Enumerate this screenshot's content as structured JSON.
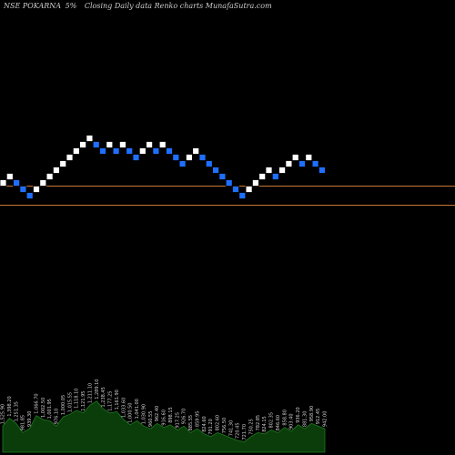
{
  "header": {
    "symbol": "NSE POKARNA",
    "box_size": "5%",
    "caption": "Closing Daily data  Renko  charts MunafaSutra.com"
  },
  "colors": {
    "background": "#000000",
    "up_brick": "#ffffff",
    "down_brick": "#1f6fff",
    "brick_border": "#000000",
    "level_line": "#c87533",
    "volume_fill": "#0b3d0b",
    "volume_stroke": "#1e7a1e"
  },
  "chart_data": {
    "type": "renko",
    "box_size_pct": 5,
    "bricks": [
      "up",
      "up",
      "down",
      "down",
      "down",
      "up",
      "up",
      "up",
      "up",
      "up",
      "up",
      "up",
      "up",
      "up",
      "down",
      "down",
      "up",
      "down",
      "up",
      "down",
      "down",
      "up",
      "up",
      "down",
      "up",
      "down",
      "down",
      "down",
      "up",
      "up",
      "down",
      "down",
      "down",
      "down",
      "down",
      "down",
      "down",
      "up",
      "up",
      "up",
      "up",
      "down",
      "up",
      "up",
      "up",
      "down",
      "up",
      "down",
      "down"
    ],
    "levels": [
      {
        "name": "upper",
        "brick_level": 0
      },
      {
        "name": "lower",
        "brick_level": -3
      }
    ],
    "volume": {
      "series": [
        {
          "v": 40,
          "label": "1,525.90"
        },
        {
          "v": 52,
          "label": "1,398.20"
        },
        {
          "v": 44,
          "label": "1,251.35"
        },
        {
          "v": 30,
          "label": "981.85"
        },
        {
          "v": 36,
          "label": "939.30"
        },
        {
          "v": 56,
          "label": "1,066.70"
        },
        {
          "v": 50,
          "label": "1,002.50"
        },
        {
          "v": 48,
          "label": "1,001.95"
        },
        {
          "v": 40,
          "label": "976.10"
        },
        {
          "v": 54,
          "label": "1,000.05"
        },
        {
          "v": 58,
          "label": "1,015.55"
        },
        {
          "v": 64,
          "label": "1,118.10"
        },
        {
          "v": 60,
          "label": "1,121.95"
        },
        {
          "v": 72,
          "label": "1,211.10"
        },
        {
          "v": 78,
          "label": "1,289.10"
        },
        {
          "v": 66,
          "label": "1,238.45"
        },
        {
          "v": 60,
          "label": "1,177.25"
        },
        {
          "v": 62,
          "label": "1,161.90"
        },
        {
          "v": 50,
          "label": "1,033.60"
        },
        {
          "v": 42,
          "label": "1,000.50"
        },
        {
          "v": 48,
          "label": "1,041.00"
        },
        {
          "v": 40,
          "label": "1,030.90"
        },
        {
          "v": 36,
          "label": "960.55"
        },
        {
          "v": 44,
          "label": "962.40"
        },
        {
          "v": 38,
          "label": "916.60"
        },
        {
          "v": 42,
          "label": "898.15"
        },
        {
          "v": 34,
          "label": "917.25"
        },
        {
          "v": 40,
          "label": "926.70"
        },
        {
          "v": 30,
          "label": "885.55"
        },
        {
          "v": 36,
          "label": "859.95"
        },
        {
          "v": 28,
          "label": "824.60"
        },
        {
          "v": 24,
          "label": "791.20"
        },
        {
          "v": 30,
          "label": "802.60"
        },
        {
          "v": 26,
          "label": "756.50"
        },
        {
          "v": 22,
          "label": "741.30"
        },
        {
          "v": 18,
          "label": "720.45"
        },
        {
          "v": 16,
          "label": "721.70"
        },
        {
          "v": 24,
          "label": "750.25"
        },
        {
          "v": 30,
          "label": "782.85"
        },
        {
          "v": 28,
          "label": "824.15"
        },
        {
          "v": 34,
          "label": "802.35"
        },
        {
          "v": 30,
          "label": "846.60"
        },
        {
          "v": 38,
          "label": "858.80"
        },
        {
          "v": 32,
          "label": "903.40"
        },
        {
          "v": 42,
          "label": "936.20"
        },
        {
          "v": 36,
          "label": "881.30"
        },
        {
          "v": 44,
          "label": "958.90"
        },
        {
          "v": 40,
          "label": "912.45"
        },
        {
          "v": 36,
          "label": "942.00"
        }
      ]
    }
  }
}
